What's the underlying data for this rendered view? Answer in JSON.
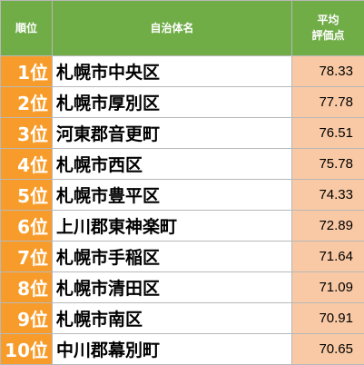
{
  "header": {
    "rank_label": "順位",
    "name_label": "自治体名",
    "score_label_line1": "平均",
    "score_label_line2": "評価点"
  },
  "rows": [
    {
      "rank": "1位",
      "name": "札幌市中央区",
      "score": "78.33"
    },
    {
      "rank": "2位",
      "name": "札幌市厚別区",
      "score": "77.78"
    },
    {
      "rank": "3位",
      "name": "河東郡音更町",
      "score": "76.51"
    },
    {
      "rank": "4位",
      "name": "札幌市西区",
      "score": "75.78"
    },
    {
      "rank": "5位",
      "name": "札幌市豊平区",
      "score": "74.33"
    },
    {
      "rank": "6位",
      "name": "上川郡東神楽町",
      "score": "72.89"
    },
    {
      "rank": "7位",
      "name": "札幌市手稲区",
      "score": "71.64"
    },
    {
      "rank": "8位",
      "name": "札幌市清田区",
      "score": "71.09"
    },
    {
      "rank": "9位",
      "name": "札幌市南区",
      "score": "70.91"
    },
    {
      "rank": "10位",
      "name": "中川郡幕別町",
      "score": "70.65"
    }
  ],
  "colors": {
    "header_bg": "#70ad47",
    "rank_bg": "#f79c2b",
    "score_bg": "#f8c9a4",
    "grid": "#b8b8b8"
  }
}
